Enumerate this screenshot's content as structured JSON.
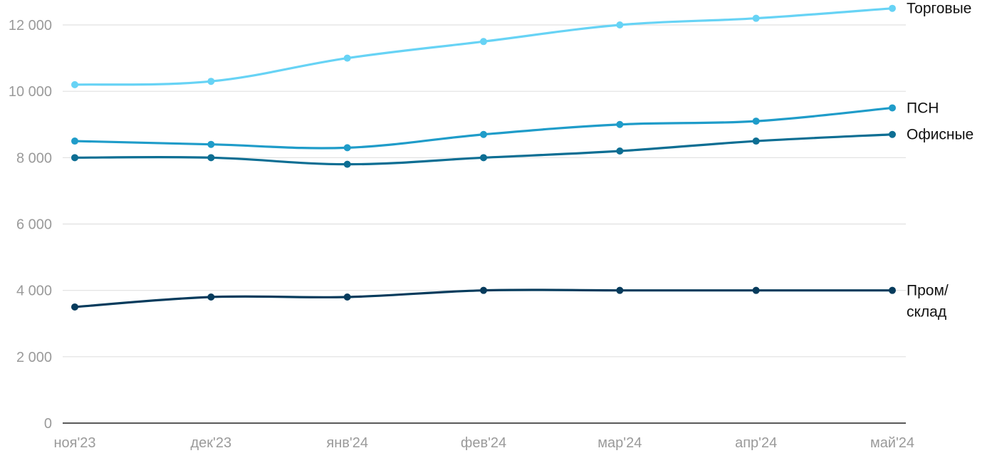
{
  "chart_data": {
    "type": "line",
    "categories": [
      "ноя'23",
      "дек'23",
      "янв'24",
      "фев'24",
      "мар'24",
      "апр'24",
      "май'24"
    ],
    "ylim": [
      0,
      12000
    ],
    "yticks": [
      "0",
      "2 000",
      "4 000",
      "6 000",
      "8 000",
      "10 000",
      "12 000"
    ],
    "ytick_values": [
      0,
      2000,
      4000,
      6000,
      8000,
      10000,
      12000
    ],
    "grid": true,
    "series": [
      {
        "name": "Торговые",
        "label_lines": [
          "Торговые"
        ],
        "color": "#67d3f5",
        "values": [
          10200,
          10300,
          11000,
          11500,
          12000,
          12200,
          12500
        ]
      },
      {
        "name": "ПСН",
        "label_lines": [
          "ПСН"
        ],
        "color": "#1f9cc9",
        "values": [
          8500,
          8400,
          8300,
          8700,
          9000,
          9100,
          9500
        ]
      },
      {
        "name": "Офисные",
        "label_lines": [
          "Офисные"
        ],
        "color": "#0d6e93",
        "values": [
          8000,
          8000,
          7800,
          8000,
          8200,
          8500,
          8700
        ]
      },
      {
        "name": "Пром/склад",
        "label_lines": [
          "Пром/",
          "склад"
        ],
        "color": "#063b5c",
        "values": [
          3500,
          3800,
          3800,
          4000,
          4000,
          4000,
          4000
        ]
      }
    ]
  }
}
